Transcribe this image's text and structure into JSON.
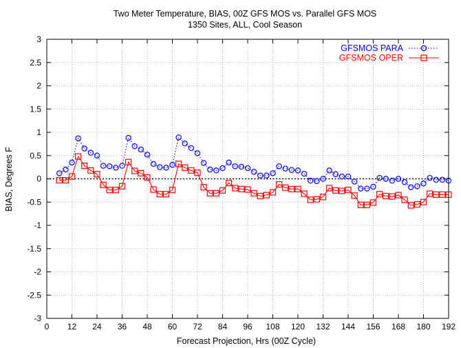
{
  "chart_data": {
    "type": "line",
    "title": "Two Meter Temperature, BIAS, 00Z GFS MOS vs. Parallel GFS MOS",
    "subtitle": "1350 Sites, ALL, Cool Season",
    "xlabel": "Forecast Projection, Hrs (00Z Cycle)",
    "ylabel": "BIAS, Degrees F",
    "xlim": [
      0,
      192
    ],
    "ylim": [
      -3,
      3
    ],
    "x_ticks": [
      "0",
      "12",
      "24",
      "36",
      "48",
      "60",
      "72",
      "84",
      "96",
      "108",
      "120",
      "132",
      "144",
      "156",
      "168",
      "180",
      "192"
    ],
    "y_ticks": [
      "-3",
      "-2.5",
      "-2",
      "-1.5",
      "-1",
      "-0.5",
      "0",
      "0.5",
      "1",
      "1.5",
      "2",
      "2.5",
      "3"
    ],
    "grid": true,
    "legend_position": "top-right",
    "x": [
      6,
      9,
      12,
      15,
      18,
      21,
      24,
      27,
      30,
      33,
      36,
      39,
      42,
      45,
      48,
      51,
      54,
      57,
      60,
      63,
      66,
      69,
      72,
      75,
      78,
      81,
      84,
      87,
      90,
      93,
      96,
      99,
      102,
      105,
      108,
      111,
      114,
      117,
      120,
      123,
      126,
      129,
      132,
      135,
      138,
      141,
      144,
      147,
      150,
      153,
      156,
      159,
      162,
      165,
      168,
      171,
      174,
      177,
      180,
      183,
      186,
      189,
      192
    ],
    "series": [
      {
        "name": "GFSMOS PARA",
        "color": "#0000ff",
        "marker": "circle",
        "line": "dotted",
        "values": [
          0.12,
          0.2,
          0.35,
          0.87,
          0.65,
          0.56,
          0.5,
          0.28,
          0.27,
          0.24,
          0.28,
          0.88,
          0.7,
          0.63,
          0.52,
          0.32,
          0.25,
          0.24,
          0.3,
          0.89,
          0.76,
          0.66,
          0.55,
          0.34,
          0.2,
          0.18,
          0.23,
          0.35,
          0.27,
          0.26,
          0.23,
          0.15,
          0.07,
          0.07,
          0.12,
          0.27,
          0.22,
          0.19,
          0.18,
          0.11,
          -0.04,
          -0.05,
          0.0,
          0.18,
          0.1,
          0.05,
          0.05,
          -0.06,
          -0.21,
          -0.21,
          -0.17,
          0.02,
          0.0,
          -0.04,
          0.0,
          -0.07,
          -0.18,
          -0.16,
          -0.1,
          0.02,
          -0.02,
          -0.02,
          -0.04
        ]
      },
      {
        "name": "GFSMOS OPER",
        "color": "#ff0000",
        "marker": "square",
        "line": "solid",
        "values": [
          -0.03,
          -0.03,
          0.05,
          0.48,
          0.28,
          0.18,
          0.1,
          -0.13,
          -0.24,
          -0.24,
          -0.16,
          0.36,
          0.17,
          0.12,
          0.03,
          -0.23,
          -0.33,
          -0.33,
          -0.24,
          0.32,
          0.24,
          0.18,
          0.13,
          -0.18,
          -0.31,
          -0.31,
          -0.25,
          -0.09,
          -0.2,
          -0.22,
          -0.23,
          -0.31,
          -0.37,
          -0.35,
          -0.29,
          -0.12,
          -0.19,
          -0.22,
          -0.22,
          -0.32,
          -0.45,
          -0.44,
          -0.39,
          -0.2,
          -0.25,
          -0.26,
          -0.24,
          -0.36,
          -0.56,
          -0.56,
          -0.51,
          -0.33,
          -0.37,
          -0.38,
          -0.35,
          -0.45,
          -0.57,
          -0.55,
          -0.5,
          -0.32,
          -0.34,
          -0.34,
          -0.34
        ]
      }
    ]
  }
}
